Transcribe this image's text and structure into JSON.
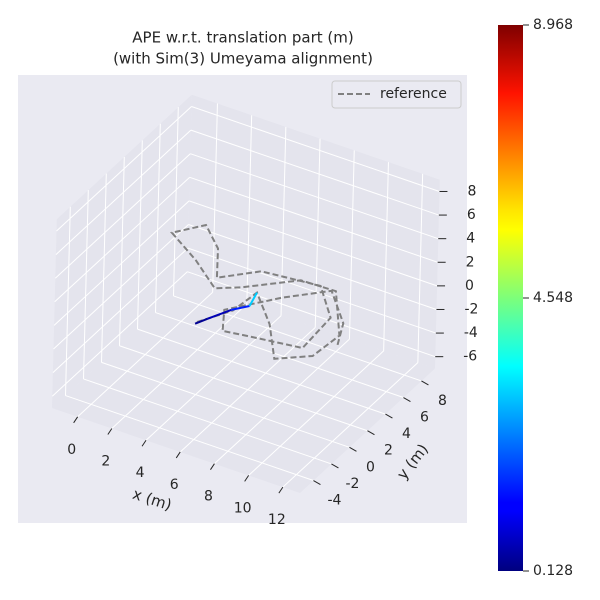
{
  "chart_data": {
    "type": "line3d",
    "title": "APE w.r.t. translation part (m)",
    "subtitle": "(with Sim(3) Umeyama alignment)",
    "xlabel": "x (m)",
    "ylabel": "y (m)",
    "xlim": [
      -1.5,
      13
    ],
    "ylim": [
      -5.5,
      9.5
    ],
    "zlim": [
      -7,
      9
    ],
    "xticks": [
      0,
      2,
      4,
      6,
      8,
      10,
      12
    ],
    "yticks": [
      -4,
      -2,
      0,
      2,
      4,
      6,
      8
    ],
    "zticks": [
      -6,
      -4,
      -2,
      0,
      2,
      4,
      6,
      8
    ],
    "grid": true,
    "legend": "upper right",
    "series": [
      {
        "name": "reference",
        "color": "#808080",
        "line_style": "dashed",
        "x": [
          5.5,
          6.5,
          6.7,
          8.7,
          10.5,
          12.0,
          12.2,
          10.0,
          8.0,
          5.8,
          4.7,
          2.6,
          0.3,
          1.4,
          3.0,
          4.3,
          5.9,
          9.1,
          11.0,
          11.2,
          8.3,
          7.0,
          6.1,
          8.0,
          9.8,
          11.8,
          12.6
        ],
        "y": [
          -3.0,
          -0.9,
          1.4,
          -1.0,
          -3.9,
          -2.5,
          0.1,
          3.9,
          3.8,
          1.4,
          0.5,
          2.4,
          4.1,
          5.8,
          4.1,
          1.5,
          3.4,
          3.9,
          1.4,
          -2.1,
          -2.7,
          -3.0,
          -1.1,
          1.7,
          3.8,
          1.3,
          -0.9
        ],
        "z": [
          2,
          2,
          2,
          2,
          2,
          2,
          2,
          2,
          2,
          2,
          2,
          2,
          2,
          2,
          2,
          2,
          2,
          2,
          2,
          2,
          2,
          2,
          2,
          2,
          2,
          2,
          2
        ]
      }
    ],
    "estimate": {
      "x": [
        5.5,
        5.8,
        6.4,
        7.0,
        6.7
      ],
      "y": [
        -3.2,
        -2.4,
        -0.9,
        0.0,
        1.4
      ],
      "z": [
        2,
        2,
        2,
        2,
        2
      ],
      "values": [
        0.3,
        0.6,
        1.5,
        3.0,
        3.8
      ]
    },
    "colorbar": {
      "cmap": "jet",
      "clim": [
        0.128,
        8.968
      ],
      "ticks": [
        0.128,
        4.548,
        8.968
      ]
    }
  }
}
